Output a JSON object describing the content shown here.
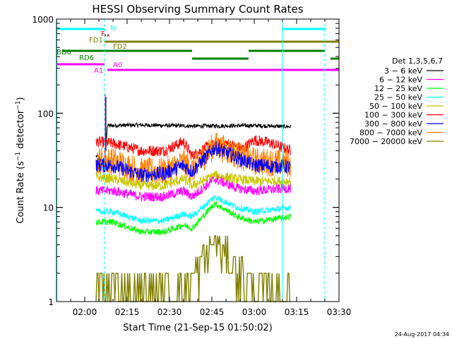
{
  "chart_data": {
    "type": "line",
    "title": "HESSI Observing Summary Count Rates",
    "xlabel": "Start Time (21-Sep-15 01:50:02)",
    "ylabel": "Count Rate (s⁻¹ detector⁻¹)",
    "ylabel_main": "Count Rate (s",
    "ylabel_sup1": "−1",
    "ylabel_mid": " detector",
    "ylabel_sup2": "−1",
    "ylabel_end": ")",
    "yscale": "log",
    "ylim": [
      1,
      1000
    ],
    "xlim": [
      "01:50",
      "03:30"
    ],
    "x_tick_labels": [
      "02:00",
      "02:15",
      "02:30",
      "02:45",
      "03:00",
      "03:15",
      "03:30"
    ],
    "y_tick_labels": [
      "1",
      "10",
      "100",
      "1000"
    ],
    "legend": {
      "title": "Det 1,3,5,6,7",
      "placement": "right",
      "entries": [
        {
          "label": "3 − 6 keV",
          "color": "#000000"
        },
        {
          "label": "6 − 12 keV",
          "color": "#ff00ff"
        },
        {
          "label": "12 − 25 keV",
          "color": "#00ff00"
        },
        {
          "label": "25 − 50 keV",
          "color": "#00ffff"
        },
        {
          "label": "50 − 100 keV",
          "color": "#c8c800"
        },
        {
          "label": "100 − 300 keV",
          "color": "#ff0000"
        },
        {
          "label": "300 − 800 keV",
          "color": "#0000ff"
        },
        {
          "label": "800 − 7000 keV",
          "color": "#ff8000"
        },
        {
          "label": "7000 − 20000 keV",
          "color": "#808000"
        }
      ]
    },
    "series_start": "02:04",
    "series_end": "03:13",
    "saa_exit": "02:07",
    "series": [
      {
        "color": "#000000",
        "points": [
          [
            "02:04",
            35
          ],
          [
            "02:07",
            30
          ],
          [
            "02:08",
            74
          ],
          [
            "02:20",
            75
          ],
          [
            "02:40",
            73
          ],
          [
            "03:00",
            74
          ],
          [
            "03:13",
            72
          ]
        ]
      },
      {
        "color": "#ff0000",
        "points": [
          [
            "02:04",
            50
          ],
          [
            "02:10",
            48
          ],
          [
            "02:20",
            40
          ],
          [
            "02:28",
            40
          ],
          [
            "02:35",
            50
          ],
          [
            "02:38",
            35
          ],
          [
            "02:44",
            45
          ],
          [
            "02:50",
            48
          ],
          [
            "02:56",
            42
          ],
          [
            "03:00",
            52
          ],
          [
            "03:06",
            48
          ],
          [
            "03:13",
            40
          ]
        ]
      },
      {
        "color": "#ff8000",
        "points": [
          [
            "02:04",
            32
          ],
          [
            "02:10",
            31
          ],
          [
            "02:20",
            24
          ],
          [
            "02:28",
            24
          ],
          [
            "02:35",
            30
          ],
          [
            "02:38",
            25
          ],
          [
            "02:46",
            46
          ],
          [
            "02:54",
            36
          ],
          [
            "03:00",
            31
          ],
          [
            "03:13",
            29
          ]
        ]
      },
      {
        "color": "#0000ff",
        "points": [
          [
            "02:04",
            28
          ],
          [
            "02:10",
            28
          ],
          [
            "02:20",
            22
          ],
          [
            "02:28",
            23
          ],
          [
            "02:35",
            28
          ],
          [
            "02:38",
            24
          ],
          [
            "02:46",
            43
          ],
          [
            "02:54",
            34
          ],
          [
            "03:00",
            28
          ],
          [
            "03:13",
            27
          ]
        ]
      },
      {
        "color": "#c8c800",
        "points": [
          [
            "02:04",
            21
          ],
          [
            "02:10",
            20
          ],
          [
            "02:20",
            17
          ],
          [
            "02:28",
            17
          ],
          [
            "02:35",
            20
          ],
          [
            "02:38",
            17
          ],
          [
            "02:46",
            22
          ],
          [
            "02:54",
            20
          ],
          [
            "03:00",
            19
          ],
          [
            "03:13",
            19
          ]
        ]
      },
      {
        "color": "#ff00ff",
        "points": [
          [
            "02:04",
            15
          ],
          [
            "02:10",
            15
          ],
          [
            "02:20",
            13
          ],
          [
            "02:28",
            13
          ],
          [
            "02:35",
            15
          ],
          [
            "02:38",
            13
          ],
          [
            "02:46",
            20
          ],
          [
            "02:54",
            16
          ],
          [
            "03:00",
            15
          ],
          [
            "03:13",
            16
          ]
        ]
      },
      {
        "color": "#00ffff",
        "points": [
          [
            "02:04",
            9
          ],
          [
            "02:10",
            9
          ],
          [
            "02:20",
            7.2
          ],
          [
            "02:28",
            7.2
          ],
          [
            "02:35",
            8.5
          ],
          [
            "02:38",
            8
          ],
          [
            "02:46",
            13
          ],
          [
            "02:54",
            10
          ],
          [
            "03:00",
            9
          ],
          [
            "03:13",
            10
          ]
        ]
      },
      {
        "color": "#00ff00",
        "points": [
          [
            "02:04",
            7
          ],
          [
            "02:10",
            7
          ],
          [
            "02:20",
            5.5
          ],
          [
            "02:28",
            5.5
          ],
          [
            "02:35",
            6.5
          ],
          [
            "02:38",
            6
          ],
          [
            "02:46",
            11
          ],
          [
            "02:54",
            8
          ],
          [
            "03:00",
            7
          ],
          [
            "03:13",
            8
          ]
        ]
      },
      {
        "color": "#808000",
        "points": [
          [
            "02:04",
            1.5
          ],
          [
            "02:10",
            1.5
          ],
          [
            "02:20",
            1.2
          ],
          [
            "02:30",
            1.3
          ],
          [
            "02:38",
            1.8
          ],
          [
            "02:46",
            4.5
          ],
          [
            "02:54",
            2.2
          ],
          [
            "03:00",
            1.5
          ],
          [
            "03:10",
            1.2
          ]
        ]
      }
    ],
    "flag_bars": [
      {
        "label": "N",
        "color": "#00ffff",
        "segments": [
          [
            "01:50",
            "02:07"
          ],
          [
            "03:10",
            "03:25"
          ]
        ]
      },
      {
        "label": "F",
        "color": "#ff0000",
        "segments": [
          [
            "02:07",
            "02:07"
          ],
          [
            "02:08",
            "02:08"
          ]
        ]
      },
      {
        "label": "FD1",
        "color": "#808000",
        "segments": [
          [
            "02:07",
            "02:08"
          ]
        ]
      },
      {
        "label": "FD2",
        "color": "#808000",
        "segments": [
          [
            "02:08",
            "03:30"
          ]
        ]
      },
      {
        "label": "BD0",
        "color": "#008000",
        "segments": [
          [
            "01:52",
            "02:38"
          ],
          [
            "02:58",
            "03:25"
          ]
        ]
      },
      {
        "label": "RD6",
        "color": "#008000",
        "segments": [
          [
            "02:38",
            "02:58"
          ],
          [
            "03:27",
            "03:30"
          ]
        ]
      },
      {
        "label": "A0",
        "color": "#ff00ff",
        "segments": [
          [
            "01:50",
            "02:07"
          ]
        ]
      },
      {
        "label": "A1",
        "color": "#ff00ff",
        "segments": [
          [
            "02:08",
            "03:30"
          ]
        ]
      }
    ],
    "vertical_markers": [
      {
        "time": "01:50",
        "color": "#00ffff",
        "style": "solid"
      },
      {
        "time": "02:07",
        "color": "#00ffff",
        "style": "dashed"
      },
      {
        "time": "03:10",
        "color": "#00ffff",
        "style": "solid"
      },
      {
        "time": "03:25",
        "color": "#00ffff",
        "style": "dashed"
      }
    ],
    "footer_date": "24-Aug-2017 04:34"
  }
}
